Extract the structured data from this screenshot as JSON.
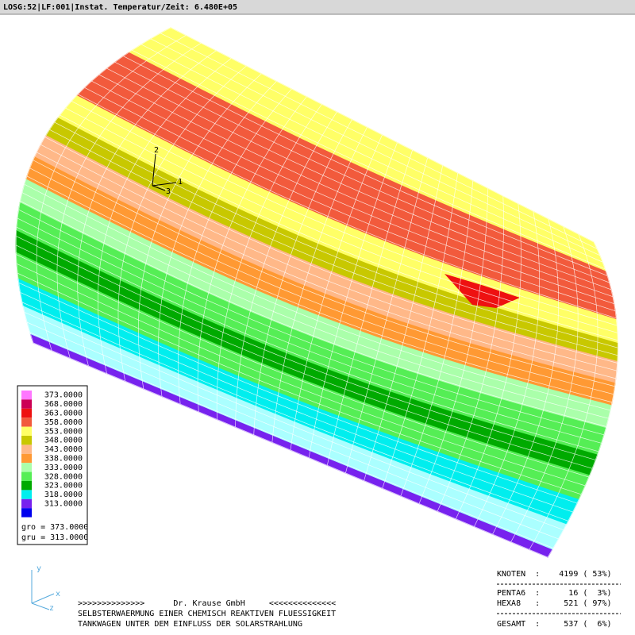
{
  "header": {
    "title": "LOSG:52|LF:001|Instat. Temperatur/Zeit: 6.480E+05"
  },
  "legend": {
    "labels": [
      "373.0000",
      "368.0000",
      "363.0000",
      "358.0000",
      "353.0000",
      "348.0000",
      "343.0000",
      "338.0000",
      "333.0000",
      "328.0000",
      "323.0000",
      "318.0000",
      "313.0000"
    ],
    "colors": [
      "#ff77ff",
      "#cc0055",
      "#ee1111",
      "#f25a3c",
      "#ffff66",
      "#c8c800",
      "#ffb888",
      "#ff9933",
      "#aaffaa",
      "#55ee55",
      "#00aa00",
      "#00eeee",
      "#7722ee",
      "#0000ee"
    ],
    "gro": "gro = 373.0000",
    "gru": "gru = 313.0000"
  },
  "model": {
    "band_colors": [
      "#ffff66",
      "#f25a3c",
      "#ffff66",
      "#c8c800",
      "#ffb888",
      "#ff9933",
      "#aaffaa",
      "#55ee55",
      "#00aa00",
      "#55ee55",
      "#00eeee",
      "#aaffff",
      "#7722ee"
    ]
  },
  "node_axes": [
    "1",
    "2",
    "3"
  ],
  "global_axes": [
    "y",
    "x",
    "z"
  ],
  "footer": {
    "lines": [
      ">>>>>>>>>>>>>>      Dr. Krause GmbH     <<<<<<<<<<<<<<",
      "SELBSTERWAERMUNG EINER CHEMISCH REAKTIVEN FLUESSIGKEIT",
      "TANKWAGEN UNTER DEM EINFLUSS DER SOLARSTRAHLUNG"
    ]
  },
  "stats": {
    "rows": [
      "KNOTEN  :    4199 ( 53%)",
      "PENTA6  :      16 (  3%)",
      "HEXA8   :     521 ( 97%)",
      "GESAMT  :     537 (  6%)"
    ]
  }
}
